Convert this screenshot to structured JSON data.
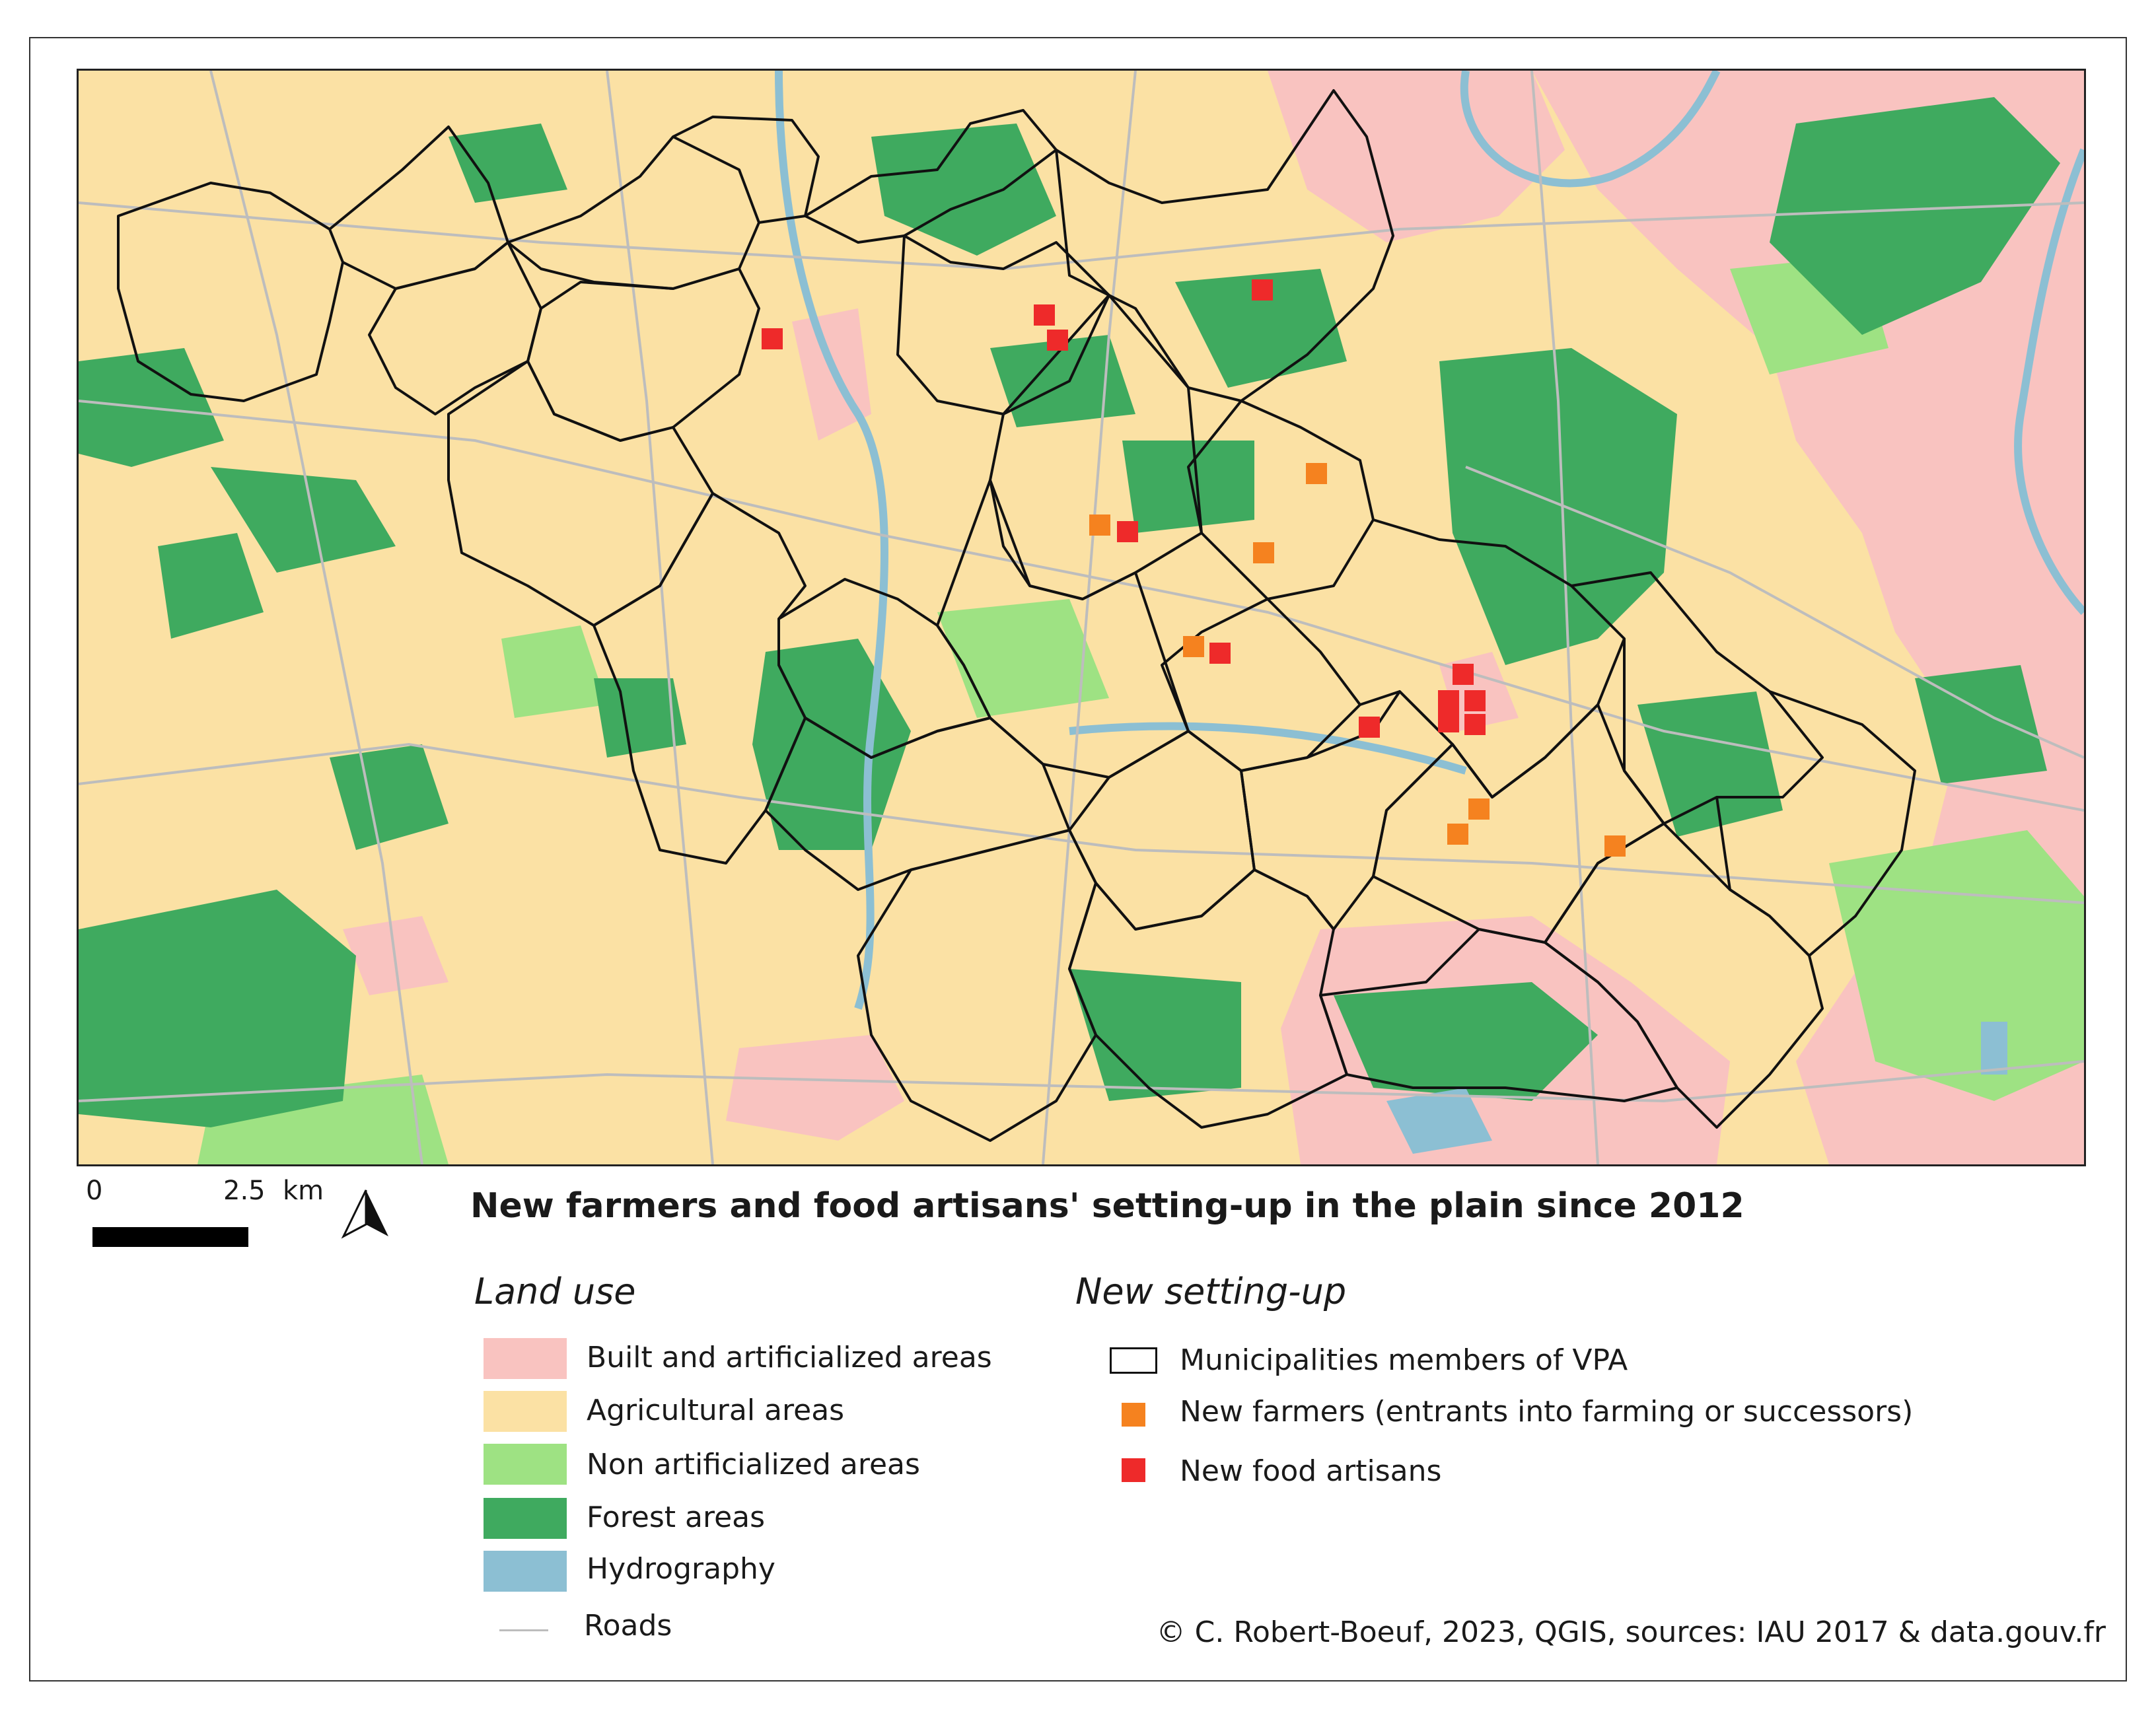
{
  "title": "New farmers and food artisans' setting-up in the plain since 2012",
  "scale": {
    "zero": "0",
    "value": "2.5",
    "unit": "km"
  },
  "land_use": {
    "heading": "Land use",
    "items": [
      {
        "label": "Built and artificialized areas",
        "color": "#f9c3c0"
      },
      {
        "label": "Agricultural areas",
        "color": "#fbe1a4"
      },
      {
        "label": "Non artificialized areas",
        "color": "#9ee283"
      },
      {
        "label": "Forest areas",
        "color": "#3faa5f"
      },
      {
        "label": "Hydrography",
        "color": "#8cbfd3"
      },
      {
        "label": "Roads",
        "color": "#bdbdbd"
      }
    ]
  },
  "new_setting_up": {
    "heading": "New setting-up",
    "items": [
      {
        "label": "Municipalities members of VPA",
        "symbol": "outline-square"
      },
      {
        "label": "New farmers (entrants into farming or successors)",
        "color": "#f5821f"
      },
      {
        "label": "New food artisans",
        "color": "#ee2a2a"
      }
    ]
  },
  "credit": "© C. Robert-Boeuf, 2023, QGIS, sources: IAU 2017 & data.gouv.fr",
  "icons": {
    "north_arrow": "north-arrow-icon"
  }
}
